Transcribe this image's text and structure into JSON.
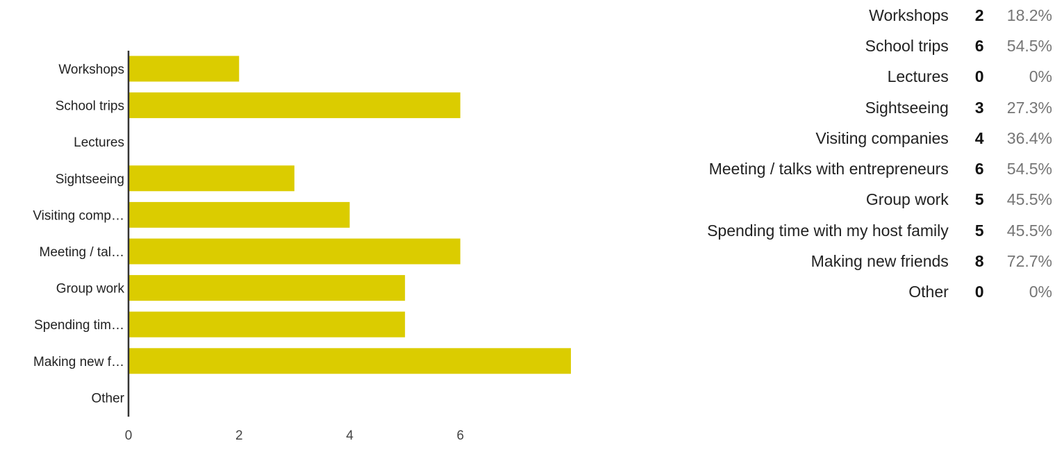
{
  "chart_data": {
    "type": "bar",
    "orientation": "horizontal",
    "categories": [
      "Workshops",
      "School trips",
      "Lectures",
      "Sightseeing",
      "Visiting comp…",
      "Meeting / tal…",
      "Group work",
      "Spending tim…",
      "Making new f…",
      "Other"
    ],
    "values": [
      2,
      6,
      0,
      3,
      4,
      6,
      5,
      5,
      8,
      0
    ],
    "x_ticks": [
      "0",
      "2",
      "4",
      "6"
    ],
    "xlim": [
      0,
      8
    ],
    "bar_color": "#dbcc00",
    "axis_color": "#333333",
    "grid": false
  },
  "legend": {
    "placement": "right",
    "rows": [
      {
        "label": "Workshops",
        "count": "2",
        "percent": "18.2%"
      },
      {
        "label": "School trips",
        "count": "6",
        "percent": "54.5%"
      },
      {
        "label": "Lectures",
        "count": "0",
        "percent": "0%"
      },
      {
        "label": "Sightseeing",
        "count": "3",
        "percent": "27.3%"
      },
      {
        "label": "Visiting companies",
        "count": "4",
        "percent": "36.4%"
      },
      {
        "label": "Meeting / talks with entrepreneurs",
        "count": "6",
        "percent": "54.5%"
      },
      {
        "label": "Group work",
        "count": "5",
        "percent": "45.5%"
      },
      {
        "label": "Spending time with my host family",
        "count": "5",
        "percent": "45.5%"
      },
      {
        "label": "Making new friends",
        "count": "8",
        "percent": "72.7%"
      },
      {
        "label": "Other",
        "count": "0",
        "percent": "0%"
      }
    ]
  }
}
